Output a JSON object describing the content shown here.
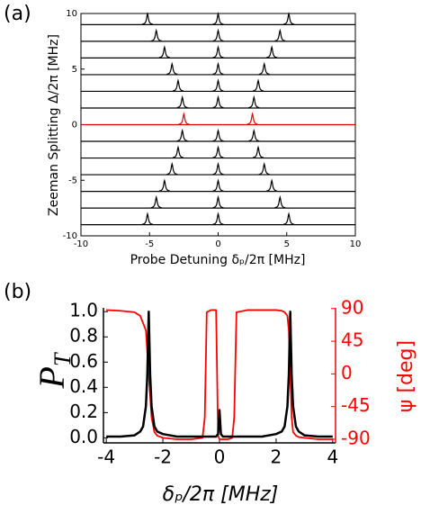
{
  "chart_data": [
    {
      "type": "waterfall",
      "panel_label": "(a)",
      "x_label": "Probe Detuning δₚ/2π [MHz]",
      "y_label": "Zeeman Splitting Δ/2π [MHz]",
      "xlim": [
        -10,
        10
      ],
      "ylim": [
        -10,
        10
      ],
      "xticks": [
        -10,
        -5,
        0,
        5,
        10
      ],
      "yticks": [
        -10,
        -5,
        0,
        5,
        10
      ],
      "traces": [
        {
          "delta": 9,
          "color": "#000000",
          "peaks": [
            -5.15,
            0,
            5.15
          ]
        },
        {
          "delta": 7.5,
          "color": "#000000",
          "peaks": [
            -4.51,
            0,
            4.51
          ]
        },
        {
          "delta": 6,
          "color": "#000000",
          "peaks": [
            -3.91,
            0,
            3.91
          ]
        },
        {
          "delta": 4.5,
          "color": "#000000",
          "peaks": [
            -3.36,
            0,
            3.36
          ]
        },
        {
          "delta": 3,
          "color": "#000000",
          "peaks": [
            -2.92,
            0,
            2.92
          ]
        },
        {
          "delta": 1.5,
          "color": "#000000",
          "peaks": [
            -2.61,
            0,
            2.61
          ]
        },
        {
          "delta": 0,
          "color": "#e00000",
          "peaks": [
            -2.5,
            2.5
          ]
        },
        {
          "delta": -1.5,
          "color": "#000000",
          "peaks": [
            -2.61,
            0,
            2.61
          ]
        },
        {
          "delta": -3,
          "color": "#000000",
          "peaks": [
            -2.92,
            0,
            2.92
          ]
        },
        {
          "delta": -4.5,
          "color": "#000000",
          "peaks": [
            -3.36,
            0,
            3.36
          ]
        },
        {
          "delta": -6,
          "color": "#000000",
          "peaks": [
            -3.91,
            0,
            3.91
          ]
        },
        {
          "delta": -7.5,
          "color": "#000000",
          "peaks": [
            -4.51,
            0,
            4.51
          ]
        },
        {
          "delta": -9,
          "color": "#000000",
          "peaks": [
            -5.15,
            0,
            5.15
          ]
        }
      ]
    },
    {
      "type": "line",
      "panel_label": "(b)",
      "x_label": "δₚ/2π [MHz]",
      "y_label": "P",
      "y_label_subscript": "T",
      "y2_label": "ψ [deg]",
      "xlim": [
        -4.1,
        4.1
      ],
      "ylim": [
        -0.04,
        1.03
      ],
      "y2lim": [
        -95,
        91
      ],
      "xticks": [
        -4,
        -2,
        0,
        2,
        4
      ],
      "yticks": [
        {
          "value": 0,
          "label": "0.0"
        },
        0.2,
        0.4,
        0.6,
        0.8,
        {
          "value": 1,
          "label": "1.0"
        }
      ],
      "y2ticks": [
        -90,
        -45,
        0,
        45,
        90
      ],
      "x": [
        -4,
        -3.5,
        -3,
        -2.8,
        -2.7,
        -2.6,
        -2.55,
        -2.5,
        -2.45,
        -2.4,
        -2.3,
        -2.2,
        -2,
        -1.5,
        -1,
        -0.6,
        -0.52,
        -0.45,
        -0.3,
        -0.12,
        -0.05,
        0,
        0.05,
        0.12,
        0.3,
        0.45,
        0.52,
        0.6,
        1,
        1.5,
        2,
        2.2,
        2.3,
        2.4,
        2.45,
        2.5,
        2.55,
        2.6,
        2.7,
        2.8,
        3,
        3.5,
        4
      ],
      "series": [
        {
          "color": "#000000",
          "values": [
            0.01,
            0.01,
            0.02,
            0.05,
            0.09,
            0.25,
            0.5,
            1.0,
            0.5,
            0.25,
            0.09,
            0.05,
            0.03,
            0.01,
            0.01,
            0.01,
            0.01,
            0.01,
            0.01,
            0.01,
            0.03,
            0.22,
            0.03,
            0.01,
            0.01,
            0.01,
            0.01,
            0.01,
            0.01,
            0.01,
            0.03,
            0.05,
            0.09,
            0.25,
            0.5,
            1.0,
            0.5,
            0.25,
            0.09,
            0.05,
            0.02,
            0.01,
            0.01
          ]
        },
        {
          "color": "#ff0000",
          "axis": "y2",
          "values": [
            88,
            87,
            85,
            80,
            70,
            60,
            30,
            0,
            -30,
            -60,
            -80,
            -85,
            -88,
            -90,
            -90,
            -88,
            -60,
            85,
            88,
            88,
            -85,
            -90,
            -90,
            -90,
            -90,
            -88,
            -60,
            85,
            88,
            88,
            88,
            87,
            85,
            80,
            60,
            0,
            -60,
            -80,
            -85,
            -87,
            -88,
            -90,
            -90
          ]
        }
      ]
    }
  ]
}
